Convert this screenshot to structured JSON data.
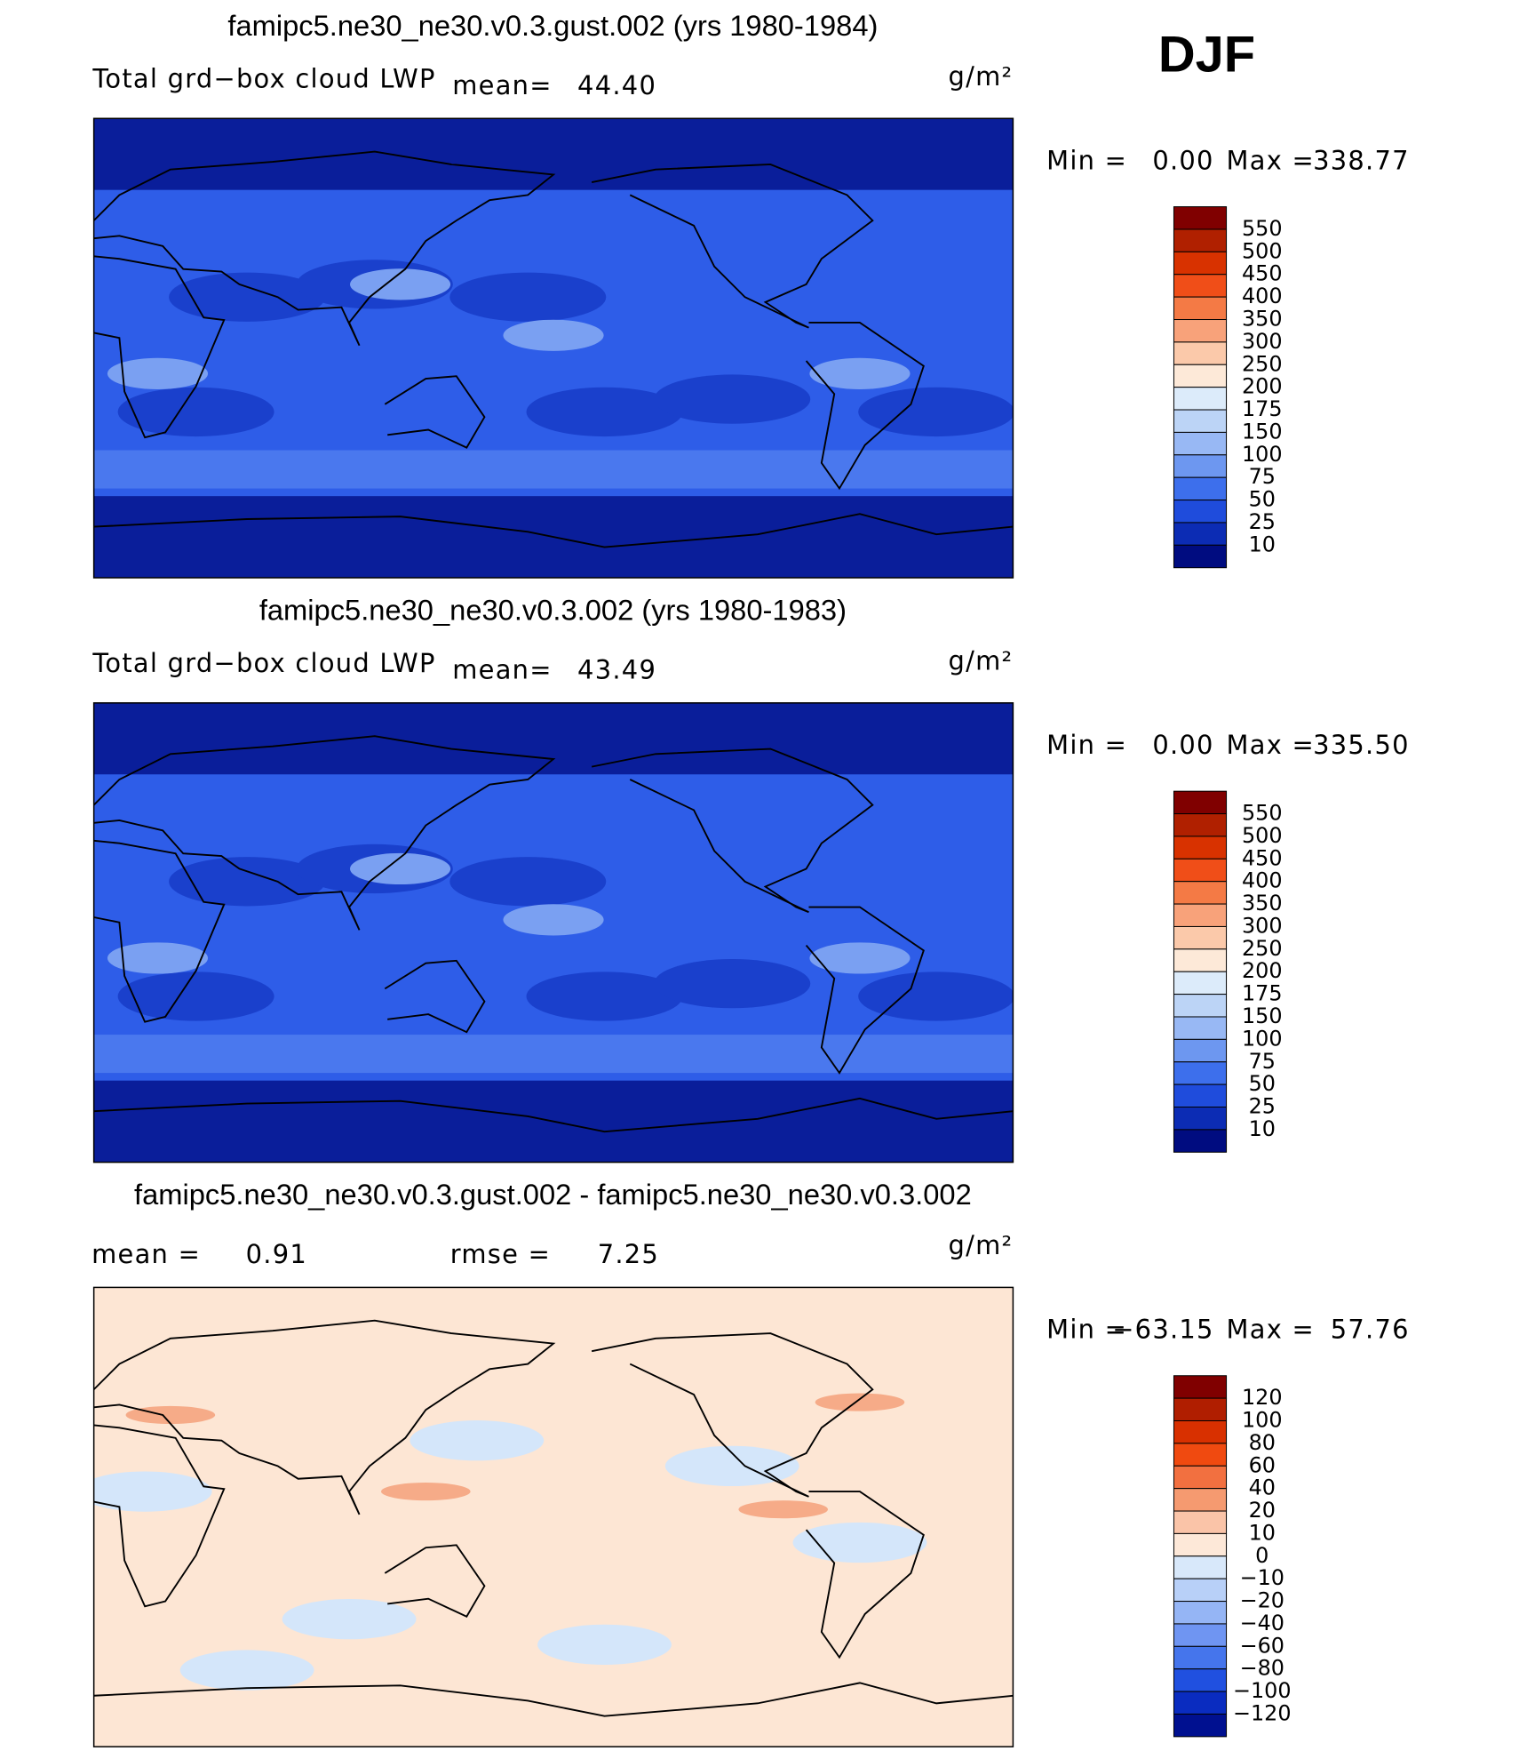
{
  "header": {
    "season": "DJF"
  },
  "panels": [
    {
      "title": "famipc5.ne30_ne30.v0.3.gust.002 (yrs 1980-1984)",
      "variable": "Total grd−box cloud LWP",
      "mean_label": "mean=",
      "mean": "44.40",
      "units": "g/m²",
      "min_label": "Min =",
      "min": "0.00",
      "max_label": "Max =",
      "max": "338.77",
      "colorbar": {
        "levels": [
          "550",
          "500",
          "450",
          "400",
          "350",
          "300",
          "250",
          "200",
          "175",
          "150",
          "100",
          "75",
          "50",
          "25",
          "10"
        ],
        "colors": [
          "#800000",
          "#b02000",
          "#d83200",
          "#f04e18",
          "#f47a45",
          "#f8a27a",
          "#fbc9aa",
          "#fde9d8",
          "#dcebfa",
          "#bcd4f6",
          "#98b8f4",
          "#6d97f0",
          "#3d6fec",
          "#1f4cdc",
          "#0c2cb4",
          "#000c80"
        ]
      }
    },
    {
      "title": "famipc5.ne30_ne30.v0.3.002 (yrs 1980-1983)",
      "variable": "Total grd−box cloud LWP",
      "mean_label": "mean=",
      "mean": "43.49",
      "units": "g/m²",
      "min_label": "Min =",
      "min": "0.00",
      "max_label": "Max =",
      "max": "335.50",
      "colorbar": {
        "levels": [
          "550",
          "500",
          "450",
          "400",
          "350",
          "300",
          "250",
          "200",
          "175",
          "150",
          "100",
          "75",
          "50",
          "25",
          "10"
        ],
        "colors": [
          "#800000",
          "#b02000",
          "#d83200",
          "#f04e18",
          "#f47a45",
          "#f8a27a",
          "#fbc9aa",
          "#fde9d8",
          "#dcebfa",
          "#bcd4f6",
          "#98b8f4",
          "#6d97f0",
          "#3d6fec",
          "#1f4cdc",
          "#0c2cb4",
          "#000c80"
        ]
      }
    },
    {
      "title": "famipc5.ne30_ne30.v0.3.gust.002 - famipc5.ne30_ne30.v0.3.002",
      "mean_label": "mean =",
      "mean": "0.91",
      "rmse_label": "rmse =",
      "rmse": "7.25",
      "units": "g/m²",
      "min_label": "Min =",
      "min": "−63.15",
      "max_label": "Max =",
      "max": "57.76",
      "colorbar": {
        "levels": [
          "120",
          "100",
          "80",
          "60",
          "40",
          "20",
          "10",
          "0",
          "−10",
          "−20",
          "−40",
          "−60",
          "−80",
          "−100",
          "−120"
        ],
        "colors": [
          "#800000",
          "#b01e00",
          "#d83000",
          "#f04a10",
          "#f27040",
          "#f59a70",
          "#fac4a8",
          "#fde8d8",
          "#d8e8fa",
          "#b8d0f8",
          "#95b5f5",
          "#6f95f2",
          "#4575ec",
          "#2050e0",
          "#0a2cc0",
          "#001090"
        ]
      }
    }
  ]
}
